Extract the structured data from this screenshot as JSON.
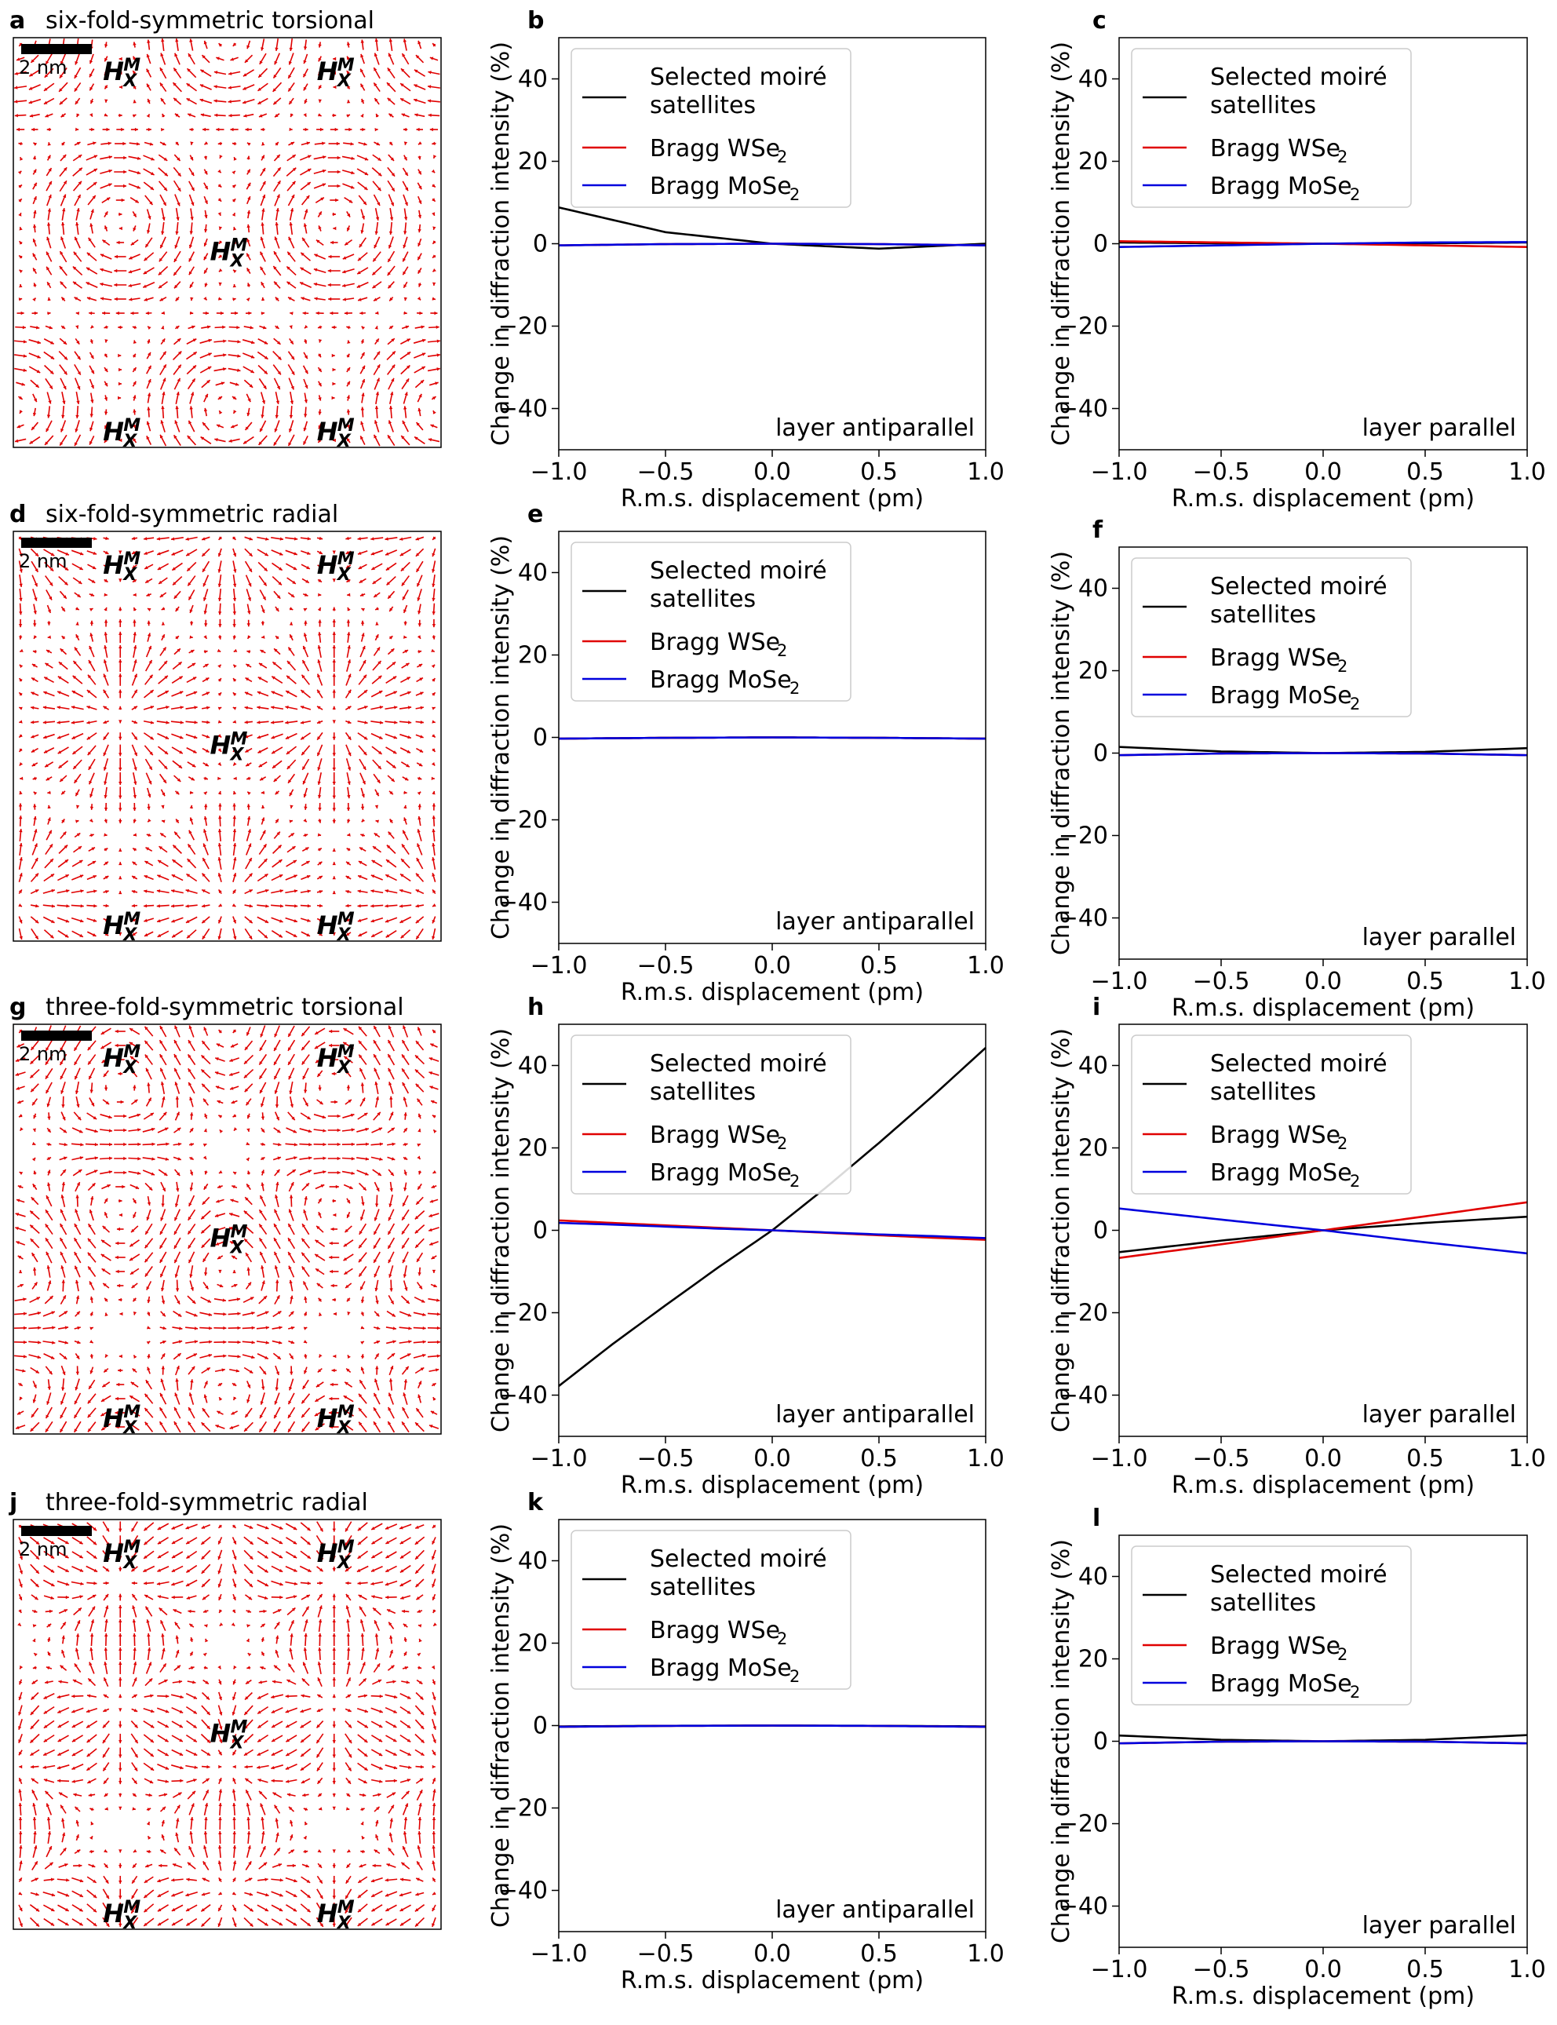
{
  "figure": {
    "colors": {
      "moire": "#000000",
      "wse2": "#e00000",
      "mose2": "#0000dd",
      "arrows": "#e00000"
    }
  },
  "field_panels": [
    {
      "letter": "a",
      "title": "six-fold-symmetric torsional",
      "scale_label": "2 nm",
      "kind": "torsional6",
      "site_label": {
        "main": "H",
        "sub": "X",
        "sup": "M"
      }
    },
    {
      "letter": "d",
      "title": "six-fold-symmetric radial",
      "scale_label": "2 nm",
      "kind": "radial6",
      "site_label": {
        "main": "H",
        "sub": "X",
        "sup": "M"
      }
    },
    {
      "letter": "g",
      "title": "three-fold-symmetric torsional",
      "scale_label": "2 nm",
      "kind": "torsional3",
      "site_label": {
        "main": "H",
        "sub": "X",
        "sup": "M"
      }
    },
    {
      "letter": "j",
      "title": "three-fold-symmetric radial",
      "scale_label": "2 nm",
      "kind": "radial3",
      "site_label": {
        "main": "H",
        "sub": "X",
        "sup": "M"
      }
    }
  ],
  "chart_data": [
    {
      "panel": "b",
      "type": "line",
      "annotation": "layer antiparallel",
      "xlabel": "R.m.s. displacement (pm)",
      "ylabel": "Change in diffraction intensity (%)",
      "xlim": [
        -1,
        1
      ],
      "ylim": [
        -50,
        50
      ],
      "xticks": [
        -1,
        -0.5,
        0,
        0.5,
        1
      ],
      "xtick_labels": [
        "−1.0",
        "−0.5",
        "0.0",
        "0.5",
        "1.0"
      ],
      "yticks": [
        -40,
        -20,
        0,
        20,
        40
      ],
      "ytick_labels": [
        "−40",
        "−20",
        "0",
        "20",
        "40"
      ],
      "legend": {
        "placement": "top-left",
        "entries": [
          {
            "line1": "Selected moiré",
            "line2": "satellites"
          },
          {
            "base": "Bragg WSe",
            "sub": "2"
          },
          {
            "base": "Bragg MoSe",
            "sub": "2"
          }
        ]
      },
      "x": [
        -1.0,
        -0.5,
        0.0,
        0.5,
        1.0
      ],
      "series": [
        {
          "name": "Selected moiré satellites",
          "values": [
            8.8,
            2.8,
            0.0,
            -1.2,
            0.0
          ]
        },
        {
          "name": "Bragg WSe2",
          "values": [
            -0.4,
            -0.1,
            0.0,
            -0.1,
            -0.4
          ]
        },
        {
          "name": "Bragg MoSe2",
          "values": [
            -0.4,
            -0.1,
            0.0,
            -0.1,
            -0.4
          ]
        }
      ]
    },
    {
      "panel": "c",
      "type": "line",
      "annotation": "layer parallel",
      "xlabel": "R.m.s. displacement (pm)",
      "ylabel": "Change in diffraction intensity (%)",
      "xlim": [
        -1,
        1
      ],
      "ylim": [
        -50,
        50
      ],
      "xticks": [
        -1,
        -0.5,
        0,
        0.5,
        1
      ],
      "xtick_labels": [
        "−1.0",
        "−0.5",
        "0.0",
        "0.5",
        "1.0"
      ],
      "yticks": [
        -40,
        -20,
        0,
        20,
        40
      ],
      "ytick_labels": [
        "−40",
        "−20",
        "0",
        "20",
        "40"
      ],
      "legend": {
        "placement": "top-left",
        "entries": [
          {
            "line1": "Selected moiré",
            "line2": "satellites"
          },
          {
            "base": "Bragg WSe",
            "sub": "2"
          },
          {
            "base": "Bragg MoSe",
            "sub": "2"
          }
        ]
      },
      "x": [
        -1.0,
        -0.5,
        0.0,
        0.5,
        1.0
      ],
      "series": [
        {
          "name": "Selected moiré satellites",
          "values": [
            0.3,
            0.1,
            0.0,
            0.1,
            0.3
          ]
        },
        {
          "name": "Bragg WSe2",
          "values": [
            0.6,
            0.3,
            0.0,
            -0.4,
            -0.8
          ]
        },
        {
          "name": "Bragg MoSe2",
          "values": [
            -0.8,
            -0.4,
            0.0,
            0.3,
            0.4
          ]
        }
      ]
    },
    {
      "panel": "e",
      "type": "line",
      "annotation": "layer antiparallel",
      "xlabel": "R.m.s. displacement (pm)",
      "ylabel": "Change in diffraction intensity (%)",
      "xlim": [
        -1,
        1
      ],
      "ylim": [
        -50,
        50
      ],
      "xticks": [
        -1,
        -0.5,
        0,
        0.5,
        1
      ],
      "xtick_labels": [
        "−1.0",
        "−0.5",
        "0.0",
        "0.5",
        "1.0"
      ],
      "yticks": [
        -40,
        -20,
        0,
        20,
        40
      ],
      "ytick_labels": [
        "−40",
        "−20",
        "0",
        "20",
        "40"
      ],
      "legend": {
        "placement": "top-left",
        "entries": [
          {
            "line1": "Selected moiré",
            "line2": "satellites"
          },
          {
            "base": "Bragg WSe",
            "sub": "2"
          },
          {
            "base": "Bragg MoSe",
            "sub": "2"
          }
        ]
      },
      "x": [
        -1.0,
        -0.5,
        0.0,
        0.5,
        1.0
      ],
      "series": [
        {
          "name": "Selected moiré satellites",
          "values": [
            -0.3,
            -0.1,
            0.0,
            -0.1,
            -0.3
          ]
        },
        {
          "name": "Bragg WSe2",
          "values": [
            -0.3,
            -0.1,
            0.0,
            -0.1,
            -0.3
          ]
        },
        {
          "name": "Bragg MoSe2",
          "values": [
            -0.3,
            -0.1,
            0.0,
            -0.1,
            -0.3
          ]
        }
      ]
    },
    {
      "panel": "f",
      "type": "line",
      "annotation": "layer parallel",
      "xlabel": "R.m.s. displacement (pm)",
      "ylabel": "Change in diffraction intensity (%)",
      "xlim": [
        -1,
        1
      ],
      "ylim": [
        -50,
        50
      ],
      "xticks": [
        -1,
        -0.5,
        0,
        0.5,
        1
      ],
      "xtick_labels": [
        "−1.0",
        "−0.5",
        "0.0",
        "0.5",
        "1.0"
      ],
      "yticks": [
        -40,
        -20,
        0,
        20,
        40
      ],
      "ytick_labels": [
        "−40",
        "−20",
        "0",
        "20",
        "40"
      ],
      "legend": {
        "placement": "top-left",
        "entries": [
          {
            "line1": "Selected moiré",
            "line2": "satellites"
          },
          {
            "base": "Bragg WSe",
            "sub": "2"
          },
          {
            "base": "Bragg MoSe",
            "sub": "2"
          }
        ]
      },
      "x": [
        -1.0,
        -0.5,
        0.0,
        0.5,
        1.0
      ],
      "series": [
        {
          "name": "Selected moiré satellites",
          "values": [
            1.5,
            0.4,
            0.0,
            0.3,
            1.2
          ]
        },
        {
          "name": "Bragg WSe2",
          "values": [
            -0.5,
            -0.1,
            0.0,
            -0.1,
            -0.5
          ]
        },
        {
          "name": "Bragg MoSe2",
          "values": [
            -0.5,
            -0.1,
            0.0,
            -0.1,
            -0.5
          ]
        }
      ]
    },
    {
      "panel": "h",
      "type": "line",
      "annotation": "layer antiparallel",
      "xlabel": "R.m.s. displacement (pm)",
      "ylabel": "Change in diffraction intensity (%)",
      "xlim": [
        -1,
        1
      ],
      "ylim": [
        -50,
        50
      ],
      "xticks": [
        -1,
        -0.5,
        0,
        0.5,
        1
      ],
      "xtick_labels": [
        "−1.0",
        "−0.5",
        "0.0",
        "0.5",
        "1.0"
      ],
      "yticks": [
        -40,
        -20,
        0,
        20,
        40
      ],
      "ytick_labels": [
        "−40",
        "−20",
        "0",
        "20",
        "40"
      ],
      "legend": {
        "placement": "top-left",
        "entries": [
          {
            "line1": "Selected moiré",
            "line2": "satellites"
          },
          {
            "base": "Bragg WSe",
            "sub": "2"
          },
          {
            "base": "Bragg MoSe",
            "sub": "2"
          }
        ]
      },
      "x": [
        -1.0,
        -0.75,
        -0.5,
        -0.25,
        0.0,
        0.25,
        0.5,
        0.75,
        1.0
      ],
      "series": [
        {
          "name": "Selected moiré satellites",
          "values": [
            -37.8,
            -27.7,
            -18.2,
            -8.9,
            0.0,
            10.3,
            21.2,
            32.5,
            44.3
          ]
        },
        {
          "name": "Bragg WSe2",
          "values": [
            2.4,
            1.8,
            1.2,
            0.6,
            0.0,
            -0.6,
            -1.2,
            -1.8,
            -2.3
          ]
        },
        {
          "name": "Bragg MoSe2",
          "values": [
            1.8,
            1.4,
            0.9,
            0.4,
            0.0,
            -0.5,
            -1.0,
            -1.4,
            -1.9
          ]
        }
      ]
    },
    {
      "panel": "i",
      "type": "line",
      "annotation": "layer parallel",
      "xlabel": "R.m.s. displacement (pm)",
      "ylabel": "Change in diffraction intensity (%)",
      "xlim": [
        -1,
        1
      ],
      "ylim": [
        -50,
        50
      ],
      "xticks": [
        -1,
        -0.5,
        0,
        0.5,
        1
      ],
      "xtick_labels": [
        "−1.0",
        "−0.5",
        "0.0",
        "0.5",
        "1.0"
      ],
      "yticks": [
        -40,
        -20,
        0,
        20,
        40
      ],
      "ytick_labels": [
        "−40",
        "−20",
        "0",
        "20",
        "40"
      ],
      "legend": {
        "placement": "top-left",
        "entries": [
          {
            "line1": "Selected moiré",
            "line2": "satellites"
          },
          {
            "base": "Bragg WSe",
            "sub": "2"
          },
          {
            "base": "Bragg MoSe",
            "sub": "2"
          }
        ]
      },
      "x": [
        -1.0,
        -0.5,
        0.0,
        0.5,
        1.0
      ],
      "series": [
        {
          "name": "Selected moiré satellites",
          "values": [
            -5.3,
            -2.5,
            0.0,
            1.8,
            3.3
          ]
        },
        {
          "name": "Bragg WSe2",
          "values": [
            -6.7,
            -3.4,
            0.0,
            3.4,
            6.8
          ]
        },
        {
          "name": "Bragg MoSe2",
          "values": [
            5.3,
            2.6,
            0.0,
            -2.9,
            -5.6
          ]
        }
      ]
    },
    {
      "panel": "k",
      "type": "line",
      "annotation": "layer antiparallel",
      "xlabel": "R.m.s. displacement (pm)",
      "ylabel": "Change in diffraction intensity (%)",
      "xlim": [
        -1,
        1
      ],
      "ylim": [
        -50,
        50
      ],
      "xticks": [
        -1,
        -0.5,
        0,
        0.5,
        1
      ],
      "xtick_labels": [
        "−1.0",
        "−0.5",
        "0.0",
        "0.5",
        "1.0"
      ],
      "yticks": [
        -40,
        -20,
        0,
        20,
        40
      ],
      "ytick_labels": [
        "−40",
        "−20",
        "0",
        "20",
        "40"
      ],
      "legend": {
        "placement": "top-left",
        "entries": [
          {
            "line1": "Selected moiré",
            "line2": "satellites"
          },
          {
            "base": "Bragg WSe",
            "sub": "2"
          },
          {
            "base": "Bragg MoSe",
            "sub": "2"
          }
        ]
      },
      "x": [
        -1.0,
        -0.5,
        0.0,
        0.5,
        1.0
      ],
      "series": [
        {
          "name": "Selected moiré satellites",
          "values": [
            -0.2,
            -0.05,
            0.0,
            -0.05,
            -0.2
          ]
        },
        {
          "name": "Bragg WSe2",
          "values": [
            -0.3,
            -0.08,
            0.0,
            -0.08,
            -0.3
          ]
        },
        {
          "name": "Bragg MoSe2",
          "values": [
            -0.3,
            -0.08,
            0.0,
            -0.08,
            -0.3
          ]
        }
      ]
    },
    {
      "panel": "l",
      "type": "line",
      "annotation": "layer parallel",
      "xlabel": "R.m.s. displacement (pm)",
      "ylabel": "Change in diffraction intensity (%)",
      "xlim": [
        -1,
        1
      ],
      "ylim": [
        -50,
        50
      ],
      "xticks": [
        -1,
        -0.5,
        0,
        0.5,
        1
      ],
      "xtick_labels": [
        "−1.0",
        "−0.5",
        "0.0",
        "0.5",
        "1.0"
      ],
      "yticks": [
        -40,
        -20,
        0,
        20,
        40
      ],
      "ytick_labels": [
        "−40",
        "−20",
        "0",
        "20",
        "40"
      ],
      "legend": {
        "placement": "top-left",
        "entries": [
          {
            "line1": "Selected moiré",
            "line2": "satellites"
          },
          {
            "base": "Bragg WSe",
            "sub": "2"
          },
          {
            "base": "Bragg MoSe",
            "sub": "2"
          }
        ]
      },
      "x": [
        -1.0,
        -0.5,
        0.0,
        0.5,
        1.0
      ],
      "series": [
        {
          "name": "Selected moiré satellites",
          "values": [
            1.4,
            0.35,
            0.0,
            0.35,
            1.5
          ]
        },
        {
          "name": "Bragg WSe2",
          "values": [
            -0.5,
            -0.1,
            0.0,
            -0.1,
            -0.5
          ]
        },
        {
          "name": "Bragg MoSe2",
          "values": [
            -0.5,
            -0.1,
            0.0,
            -0.1,
            -0.5
          ]
        }
      ]
    }
  ]
}
